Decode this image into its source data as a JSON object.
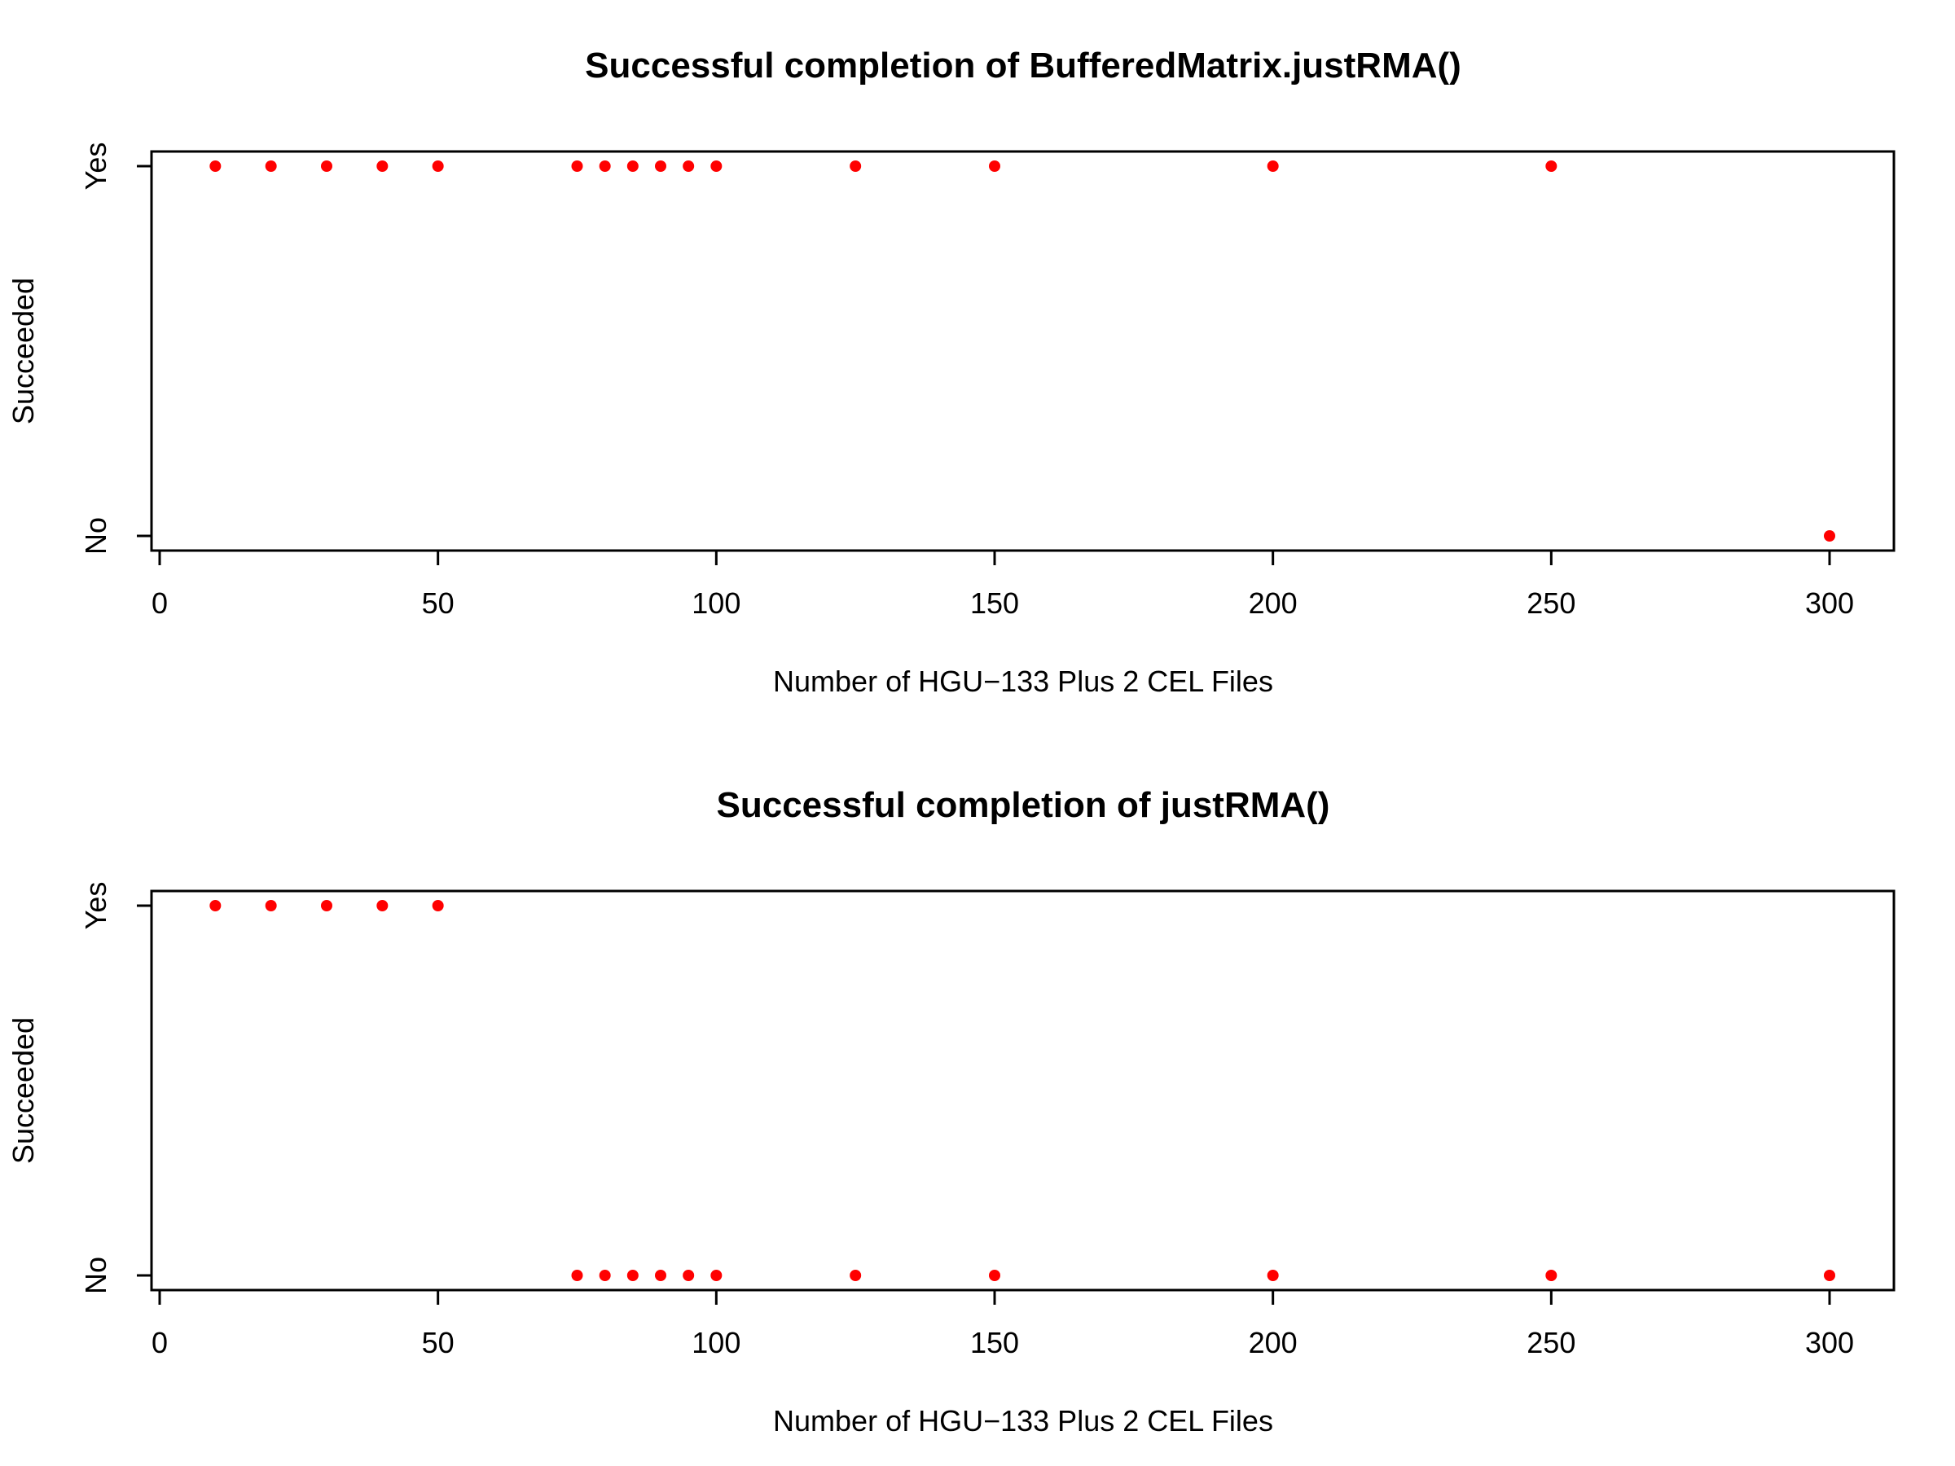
{
  "chart_data": [
    {
      "type": "scatter",
      "title": "Successful completion of BufferedMatrix.justRMA()",
      "xlabel": "Number of HGU−133 Plus 2 CEL Files",
      "ylabel": "Succeeded",
      "xlim": [
        0,
        300
      ],
      "x_ticks": [
        0,
        50,
        100,
        150,
        200,
        250,
        300
      ],
      "y_categories": [
        "No",
        "Yes"
      ],
      "grid": false,
      "marker_color": "#ff0000",
      "points": [
        {
          "x": 10,
          "y": "Yes"
        },
        {
          "x": 20,
          "y": "Yes"
        },
        {
          "x": 30,
          "y": "Yes"
        },
        {
          "x": 40,
          "y": "Yes"
        },
        {
          "x": 50,
          "y": "Yes"
        },
        {
          "x": 75,
          "y": "Yes"
        },
        {
          "x": 80,
          "y": "Yes"
        },
        {
          "x": 85,
          "y": "Yes"
        },
        {
          "x": 90,
          "y": "Yes"
        },
        {
          "x": 95,
          "y": "Yes"
        },
        {
          "x": 100,
          "y": "Yes"
        },
        {
          "x": 125,
          "y": "Yes"
        },
        {
          "x": 150,
          "y": "Yes"
        },
        {
          "x": 200,
          "y": "Yes"
        },
        {
          "x": 250,
          "y": "Yes"
        },
        {
          "x": 300,
          "y": "No"
        }
      ]
    },
    {
      "type": "scatter",
      "title": "Successful completion of justRMA()",
      "xlabel": "Number of HGU−133 Plus 2 CEL Files",
      "ylabel": "Succeeded",
      "xlim": [
        0,
        300
      ],
      "x_ticks": [
        0,
        50,
        100,
        150,
        200,
        250,
        300
      ],
      "y_categories": [
        "No",
        "Yes"
      ],
      "grid": false,
      "marker_color": "#ff0000",
      "points": [
        {
          "x": 10,
          "y": "Yes"
        },
        {
          "x": 20,
          "y": "Yes"
        },
        {
          "x": 30,
          "y": "Yes"
        },
        {
          "x": 40,
          "y": "Yes"
        },
        {
          "x": 50,
          "y": "Yes"
        },
        {
          "x": 75,
          "y": "No"
        },
        {
          "x": 80,
          "y": "No"
        },
        {
          "x": 85,
          "y": "No"
        },
        {
          "x": 90,
          "y": "No"
        },
        {
          "x": 95,
          "y": "No"
        },
        {
          "x": 100,
          "y": "No"
        },
        {
          "x": 125,
          "y": "No"
        },
        {
          "x": 150,
          "y": "No"
        },
        {
          "x": 200,
          "y": "No"
        },
        {
          "x": 250,
          "y": "No"
        },
        {
          "x": 300,
          "y": "No"
        }
      ]
    }
  ]
}
